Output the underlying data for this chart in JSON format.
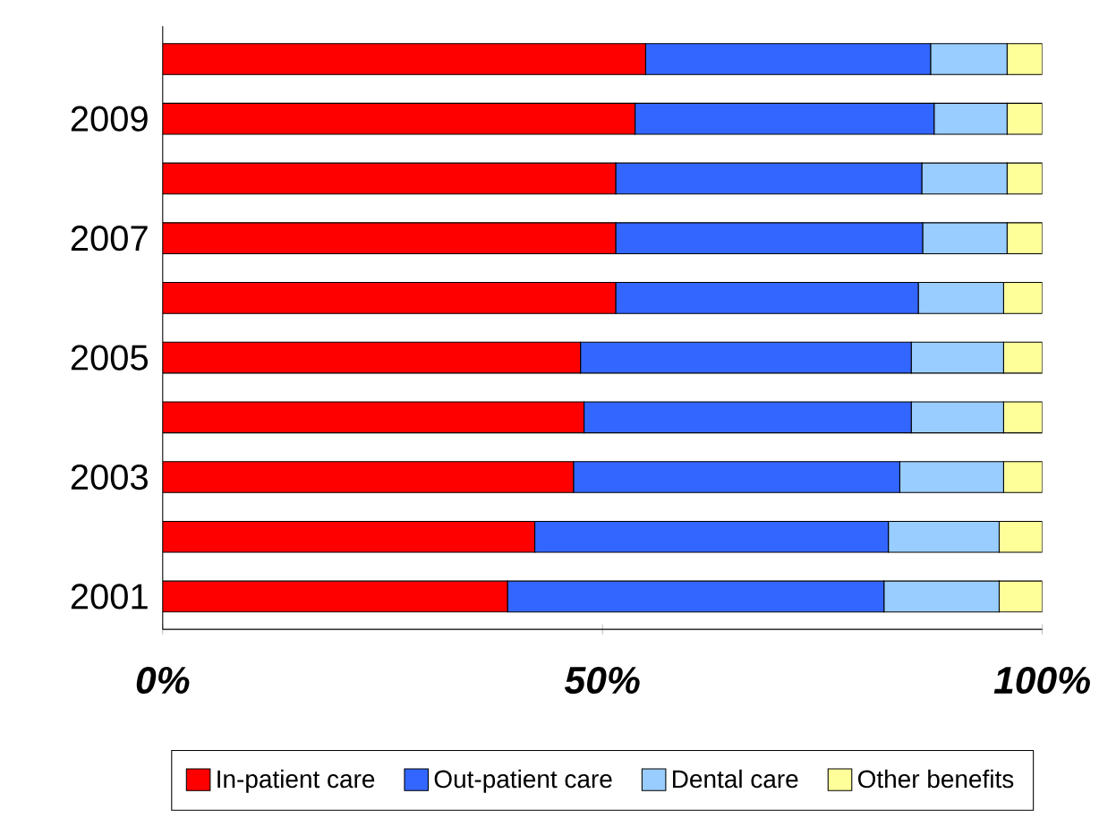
{
  "chart_data": {
    "type": "bar",
    "orientation": "horizontal",
    "stacked": true,
    "categories": [
      null,
      "2009",
      null,
      "2007",
      null,
      "2005",
      null,
      "2003",
      null,
      "2001"
    ],
    "series": [
      {
        "name": "In-patient care",
        "color": "#ff0000",
        "values": [
          54.9,
          53.7,
          51.5,
          51.5,
          51.5,
          47.5,
          47.9,
          46.7,
          42.3,
          39.2
        ]
      },
      {
        "name": "Out-patient care",
        "color": "#3366ff",
        "values": [
          32.4,
          34.0,
          34.8,
          34.9,
          34.4,
          37.6,
          37.2,
          37.1,
          40.2,
          42.8
        ]
      },
      {
        "name": "Dental care",
        "color": "#99ccff",
        "values": [
          8.7,
          8.3,
          9.7,
          9.6,
          9.7,
          10.5,
          10.5,
          11.8,
          12.6,
          13.1
        ]
      },
      {
        "name": "Other benefits",
        "color": "#ffff99",
        "values": [
          4.0,
          4.0,
          4.0,
          4.0,
          4.4,
          4.4,
          4.4,
          4.4,
          4.9,
          4.9
        ]
      }
    ],
    "xlim": [
      0,
      100
    ],
    "xticks": [
      {
        "value": 0,
        "label": "0%"
      },
      {
        "value": 50,
        "label": "50%"
      },
      {
        "value": 100,
        "label": "100%"
      }
    ],
    "legend": "bottom"
  }
}
